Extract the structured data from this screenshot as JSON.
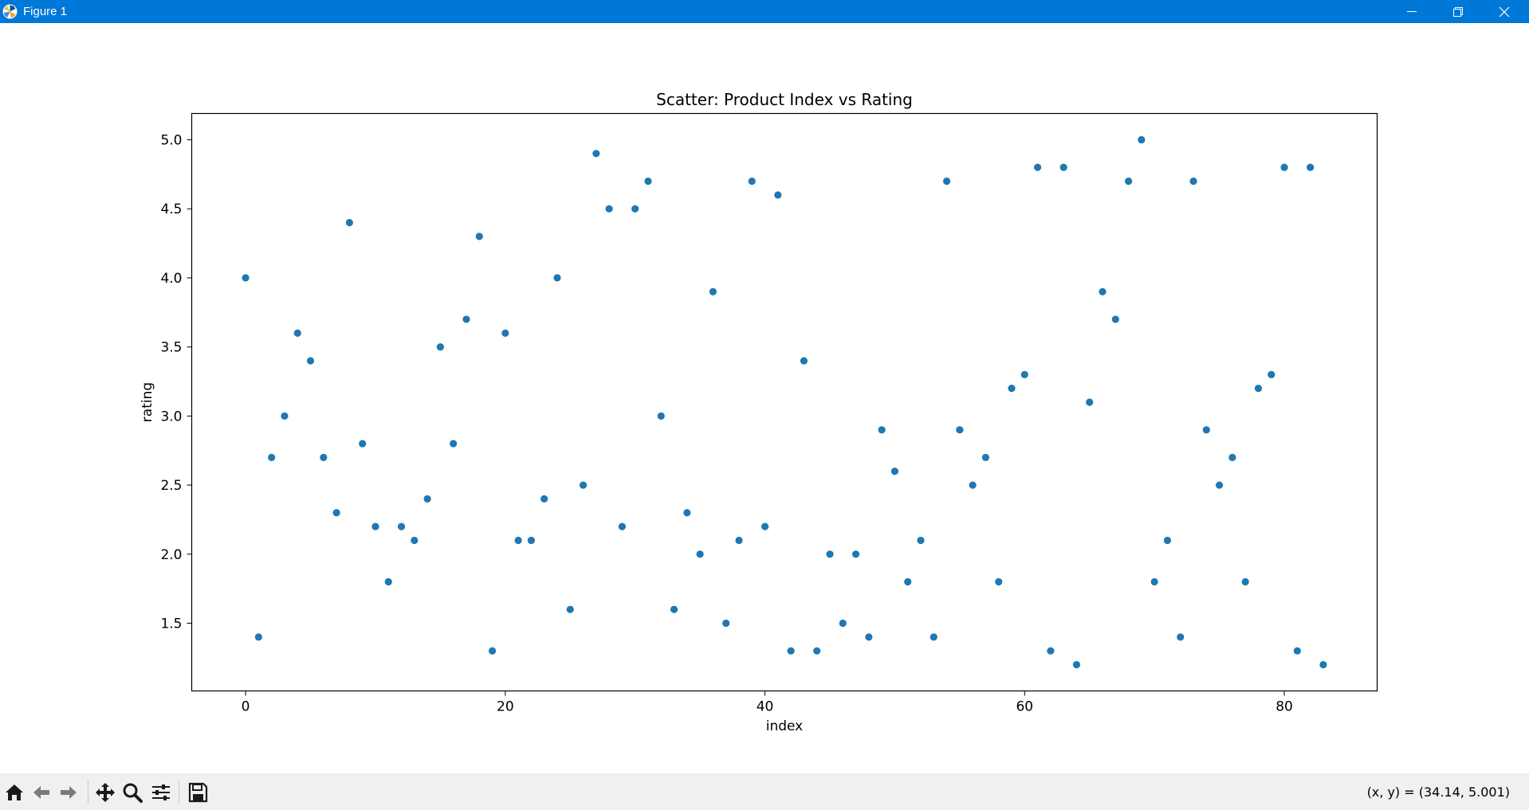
{
  "window": {
    "title": "Figure 1",
    "controls": [
      "minimize",
      "restore",
      "close"
    ],
    "titlebar_color": "#0078d7"
  },
  "toolbar": {
    "buttons": [
      "home-icon",
      "back-icon",
      "forward-icon",
      "pan-icon",
      "zoom-icon",
      "configure-subplots-icon",
      "save-icon"
    ],
    "coords": "(x, y) = (34.14, 5.001)"
  },
  "chart_data": {
    "type": "scatter",
    "title": "Scatter: Product Index vs Rating",
    "xlabel": "index",
    "ylabel": "rating",
    "xlim": [
      -4.15,
      87.15
    ],
    "ylim": [
      1.01,
      5.19
    ],
    "xticks": [
      0,
      20,
      40,
      60,
      80
    ],
    "xtick_labels": [
      "0",
      "20",
      "40",
      "60",
      "80"
    ],
    "yticks": [
      1.5,
      2.0,
      2.5,
      3.0,
      3.5,
      4.0,
      4.5,
      5.0
    ],
    "ytick_labels": [
      "1.5",
      "2.0",
      "2.5",
      "3.0",
      "3.5",
      "4.0",
      "4.5",
      "5.0"
    ],
    "grid": false,
    "marker_color": "#1f77b4",
    "x": [
      0,
      1,
      2,
      3,
      4,
      5,
      6,
      7,
      8,
      9,
      10,
      11,
      12,
      13,
      14,
      15,
      16,
      17,
      18,
      19,
      20,
      21,
      22,
      23,
      24,
      25,
      26,
      27,
      28,
      29,
      30,
      31,
      32,
      33,
      34,
      35,
      36,
      37,
      38,
      39,
      40,
      41,
      42,
      43,
      44,
      45,
      46,
      47,
      48,
      49,
      50,
      51,
      52,
      53,
      54,
      55,
      56,
      57,
      58,
      59,
      60,
      61,
      62,
      63,
      64,
      65,
      66,
      67,
      68,
      69,
      70,
      71,
      72,
      73,
      74,
      75,
      76,
      77,
      78,
      79,
      80,
      81,
      82,
      83
    ],
    "y": [
      4.0,
      1.4,
      2.7,
      3.0,
      3.6,
      3.4,
      2.7,
      2.3,
      4.4,
      2.8,
      2.2,
      1.8,
      2.2,
      2.1,
      2.4,
      3.5,
      2.8,
      3.7,
      4.3,
      1.3,
      3.6,
      2.1,
      2.1,
      2.4,
      4.0,
      1.6,
      2.5,
      4.9,
      4.5,
      2.2,
      4.5,
      4.7,
      3.0,
      1.6,
      2.3,
      2.0,
      3.9,
      1.5,
      2.1,
      4.7,
      2.2,
      4.6,
      1.3,
      3.4,
      1.3,
      2.0,
      1.5,
      2.0,
      1.4,
      2.9,
      2.6,
      1.8,
      2.1,
      1.4,
      4.7,
      2.9,
      2.5,
      2.7,
      1.8,
      3.2,
      3.3,
      4.8,
      1.3,
      4.8,
      1.2,
      3.1,
      3.9,
      3.7,
      4.7,
      5.0,
      1.8,
      2.1,
      1.4,
      4.7,
      2.9,
      2.5,
      2.7,
      1.8,
      3.2,
      3.3,
      4.8,
      1.3,
      4.8,
      1.2
    ]
  }
}
